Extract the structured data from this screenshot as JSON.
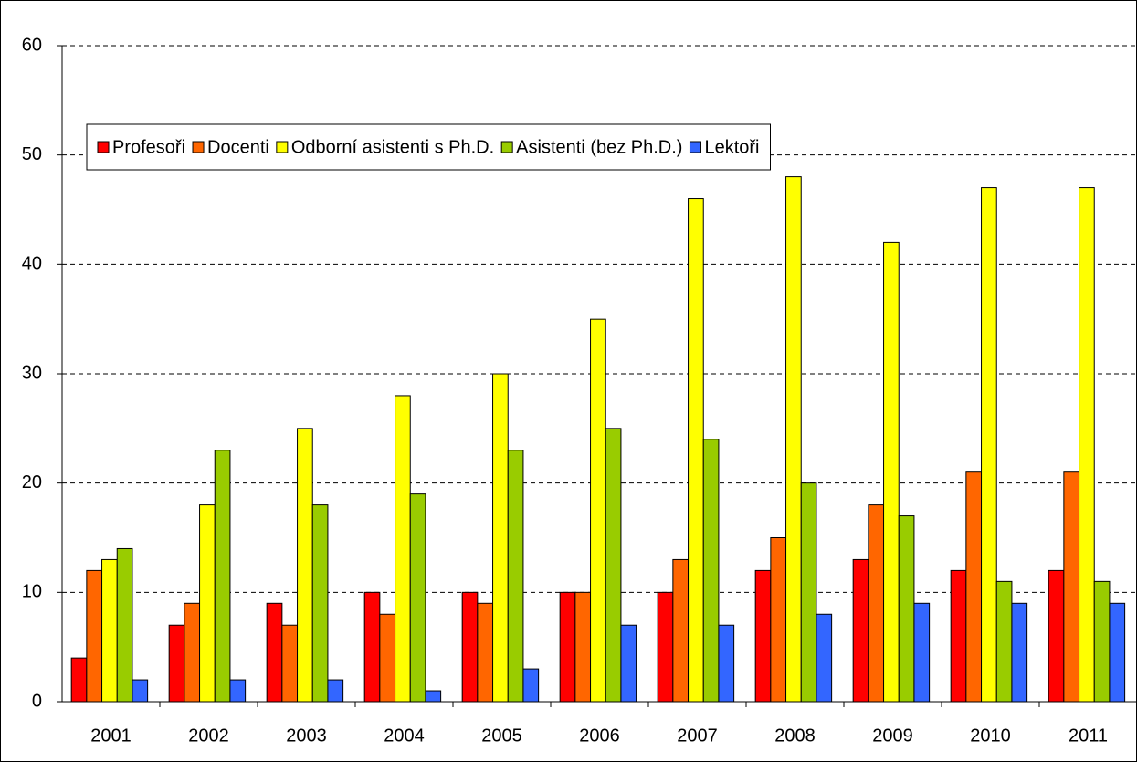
{
  "chart_data": {
    "type": "bar",
    "categories": [
      "2001",
      "2002",
      "2003",
      "2004",
      "2005",
      "2006",
      "2007",
      "2008",
      "2009",
      "2010",
      "2011"
    ],
    "series": [
      {
        "name": "Profesoři",
        "color": "#ff0000",
        "values": [
          4,
          7,
          9,
          10,
          10,
          10,
          10,
          12,
          13,
          12,
          12
        ]
      },
      {
        "name": "Docenti",
        "color": "#ff6600",
        "values": [
          12,
          9,
          7,
          8,
          9,
          10,
          13,
          15,
          18,
          21,
          21
        ]
      },
      {
        "name": "Odborní asistenti s Ph.D.",
        "color": "#ffff00",
        "values": [
          13,
          18,
          25,
          28,
          30,
          35,
          46,
          48,
          42,
          47,
          47
        ]
      },
      {
        "name": "Asistenti (bez Ph.D.)",
        "color": "#99cc00",
        "values": [
          14,
          23,
          18,
          19,
          23,
          25,
          24,
          20,
          17,
          11,
          11
        ]
      },
      {
        "name": "Lektoři",
        "color": "#3366ff",
        "values": [
          2,
          2,
          2,
          1,
          3,
          7,
          7,
          8,
          9,
          9,
          9
        ]
      }
    ],
    "ylim": [
      0,
      60
    ],
    "yticks": [
      0,
      10,
      20,
      30,
      40,
      50,
      60
    ],
    "grid": true,
    "legend": "top"
  }
}
